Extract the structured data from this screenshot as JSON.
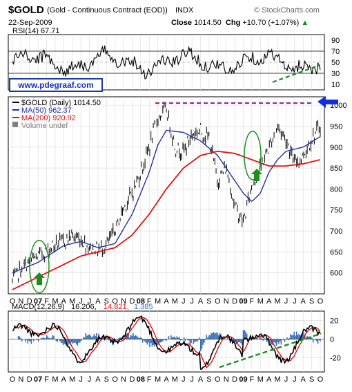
{
  "header": {
    "symbol": "$GOLD",
    "description": "(Gold - Continuous Contract (EOD))",
    "exchange": "INDX",
    "brand": "© StockCharts.com",
    "date": "22-Sep-2009",
    "close_label": "Close",
    "close_value": "1014.50",
    "chg_label": "Chg",
    "chg_value": "+10.70 (+1.07%)",
    "chg_arrow": "▲"
  },
  "watermark": "www.pdegraaf.com",
  "colors": {
    "price": "#000000",
    "ma50": "#1f2fa0",
    "ma200": "#e01010",
    "volume": "#808080",
    "macd": "#000000",
    "signal": "#e01010",
    "histogram": "#3a6fb5",
    "annotation_green": "#1e8c1e",
    "resistance": "#8a1a8a",
    "arrow_blue": "#1030e0",
    "grid": "#d8d8d8"
  },
  "chart_data": [
    {
      "type": "line",
      "panel": "rsi",
      "legend": "RSI(14) 67.71",
      "series": [
        {
          "name": "RSI(14)",
          "last": 67.71
        }
      ],
      "ylim": [
        0,
        100
      ],
      "yticks": [
        90,
        70,
        50,
        30,
        10
      ],
      "reference_lines": [
        70,
        30
      ],
      "annotations": [
        "green dashed rising trendline beneath RSI lows (2009)"
      ]
    },
    {
      "type": "line",
      "panel": "price",
      "legend": [
        {
          "label": "$GOLD (Daily) 1014.50",
          "color": "#000000"
        },
        {
          "label": "MA(50) 962.37",
          "color": "#1f2fa0"
        },
        {
          "label": "MA(200) 920.92",
          "color": "#e01010"
        },
        {
          "label": "Volume undef",
          "color": "#808080"
        }
      ],
      "x_ticks": [
        "O",
        "N",
        "D",
        "07",
        "F",
        "M",
        "A",
        "M",
        "J",
        "J",
        "A",
        "S",
        "O",
        "N",
        "D",
        "08",
        "F",
        "M",
        "A",
        "M",
        "J",
        "J",
        "A",
        "S",
        "O",
        "N",
        "D",
        "09",
        "F",
        "M",
        "A",
        "M",
        "J",
        "J",
        "A",
        "S",
        "O"
      ],
      "ylim": [
        550,
        1020
      ],
      "yticks": [
        1000,
        950,
        900,
        850,
        800,
        750,
        700,
        650,
        600
      ],
      "series": [
        {
          "name": "$GOLD (Daily)",
          "points": [
            [
              0,
              580
            ],
            [
              1,
              610
            ],
            [
              2,
              625
            ],
            [
              3,
              640
            ],
            [
              4,
              655
            ],
            [
              5,
              668
            ],
            [
              6,
              675
            ],
            [
              7,
              690
            ],
            [
              8,
              680
            ],
            [
              9,
              660
            ],
            [
              10,
              655
            ],
            [
              11,
              665
            ],
            [
              12,
              700
            ],
            [
              13,
              755
            ],
            [
              14,
              790
            ],
            [
              15,
              840
            ],
            [
              16,
              900
            ],
            [
              17,
              970
            ],
            [
              18,
              990
            ],
            [
              19,
              900
            ],
            [
              20,
              890
            ],
            [
              21,
              930
            ],
            [
              22,
              940
            ],
            [
              23,
              920
            ],
            [
              24,
              820
            ],
            [
              25,
              850
            ],
            [
              26,
              760
            ],
            [
              27,
              720
            ],
            [
              28,
              810
            ],
            [
              29,
              850
            ],
            [
              30,
              900
            ],
            [
              31,
              950
            ],
            [
              32,
              920
            ],
            [
              33,
              860
            ],
            [
              34,
              880
            ],
            [
              35,
              920
            ],
            [
              36,
              950
            ],
            [
              37,
              940
            ],
            [
              38,
              960
            ],
            [
              39,
              950
            ],
            [
              40,
              990
            ],
            [
              41,
              1014.5
            ]
          ]
        },
        {
          "name": "MA(50)",
          "points": [
            [
              0,
              600
            ],
            [
              3,
              625
            ],
            [
              6,
              665
            ],
            [
              8,
              675
            ],
            [
              10,
              660
            ],
            [
              12,
              670
            ],
            [
              14,
              740
            ],
            [
              16,
              840
            ],
            [
              17,
              905
            ],
            [
              18,
              940
            ],
            [
              20,
              935
            ],
            [
              22,
              915
            ],
            [
              24,
              880
            ],
            [
              26,
              820
            ],
            [
              27,
              790
            ],
            [
              28,
              770
            ],
            [
              29,
              790
            ],
            [
              30,
              840
            ],
            [
              31,
              870
            ],
            [
              32,
              890
            ],
            [
              34,
              900
            ],
            [
              36,
              925
            ],
            [
              38,
              940
            ],
            [
              40,
              945
            ],
            [
              41,
              962.37
            ]
          ]
        },
        {
          "name": "MA(200)",
          "points": [
            [
              0,
              560
            ],
            [
              4,
              600
            ],
            [
              8,
              640
            ],
            [
              12,
              660
            ],
            [
              14,
              690
            ],
            [
              16,
              740
            ],
            [
              18,
              800
            ],
            [
              20,
              850
            ],
            [
              22,
              880
            ],
            [
              24,
              890
            ],
            [
              26,
              885
            ],
            [
              28,
              870
            ],
            [
              30,
              855
            ],
            [
              32,
              855
            ],
            [
              34,
              860
            ],
            [
              36,
              870
            ],
            [
              38,
              885
            ],
            [
              40,
              905
            ],
            [
              41,
              920.92
            ]
          ]
        }
      ],
      "annotations": [
        "purple dashed resistance line near 1005 (2008 high to 2009 retest)",
        "blue arrow pointing left at breakout",
        "green ovals with up arrows marking buy signals (Jan 2007, Feb 2009)"
      ]
    },
    {
      "type": "line",
      "panel": "macd",
      "legend": [
        {
          "label": "MACD(12,26,9)",
          "color": "#000000"
        },
        {
          "label": "16.206,",
          "color": "#000000"
        },
        {
          "label": "14.821,",
          "color": "#e01010"
        },
        {
          "label": "1.385",
          "color": "#3a6fb5"
        }
      ],
      "x_ticks": [
        "O",
        "N",
        "D",
        "07",
        "F",
        "M",
        "A",
        "M",
        "J",
        "J",
        "A",
        "S",
        "O",
        "N",
        "D",
        "08",
        "F",
        "M",
        "A",
        "M",
        "J",
        "J",
        "A",
        "S",
        "O",
        "N",
        "D",
        "09",
        "F",
        "M",
        "A",
        "M",
        "J",
        "J",
        "A",
        "S",
        "O"
      ],
      "ylim": [
        -35,
        30
      ],
      "yticks": [
        20,
        0,
        -20
      ],
      "series": [
        {
          "name": "MACD",
          "last": 16.206
        },
        {
          "name": "Signal",
          "last": 14.821
        },
        {
          "name": "Histogram",
          "last": 1.385
        }
      ],
      "annotations": [
        "green dashed rising trendline connecting MACD lows (late 2008 to 2009)"
      ]
    }
  ]
}
